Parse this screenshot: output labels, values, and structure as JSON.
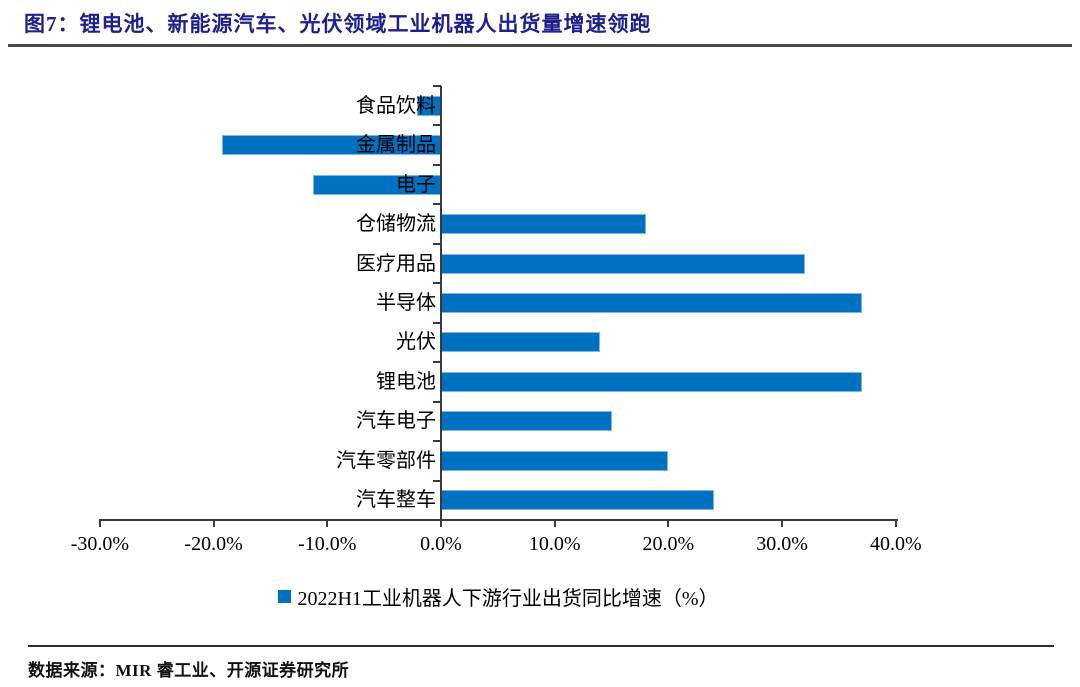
{
  "header": {
    "title": "图7：锂电池、新能源汽车、光伏领域工业机器人出货量增速领跑"
  },
  "chart_data": {
    "type": "bar",
    "orientation": "horizontal",
    "title": "图7：锂电池、新能源汽车、光伏领域工业机器人出货量增速领跑",
    "legend": "2022H1工业机器人下游行业出货同比增速（%）",
    "legend_position": "bottom-center",
    "legend_marker": "blue-square",
    "categories": [
      "食品饮料",
      "金属制品",
      "电子",
      "仓储物流",
      "医疗用品",
      "半导体",
      "光伏",
      "锂电池",
      "汽车电子",
      "汽车零部件",
      "汽车整车"
    ],
    "values": [
      -2.1,
      -19.3,
      -11.3,
      18.0,
      32.0,
      37.0,
      14.0,
      37.0,
      15.0,
      20.0,
      24.0
    ],
    "unit": "%",
    "x_tick_labels": [
      "-30.0%",
      "-20.0%",
      "-10.0%",
      "0.0%",
      "10.0%",
      "20.0%",
      "30.0%",
      "40.0%"
    ],
    "x_tick_values": [
      -30,
      -20,
      -10,
      0,
      10,
      20,
      30,
      40
    ],
    "xlim": [
      -30,
      40
    ],
    "grid": false,
    "bar_color": "#0070C0",
    "bar_border_color": "#7EB6E4"
  },
  "footer": {
    "source": "数据来源：MIR 睿工业、开源证券研究所"
  },
  "colors": {
    "title_text": "#1F218B",
    "axis": "#3A3A3A",
    "bar_fill": "#0070C0",
    "text": "#000000"
  }
}
